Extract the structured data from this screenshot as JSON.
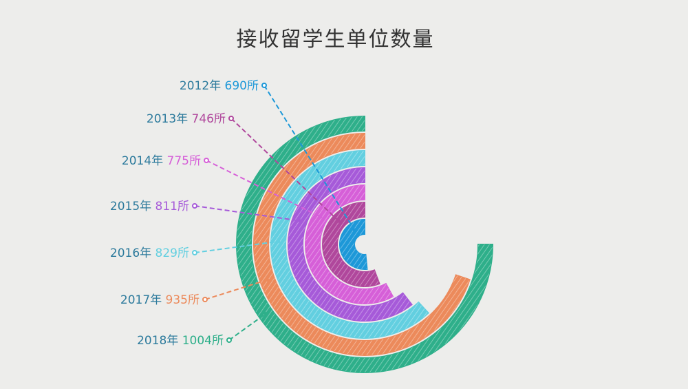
{
  "chart_data": {
    "type": "radial-bar",
    "title": "接收留学生单位数量",
    "unit": "所",
    "year_suffix": "年",
    "max_angle_value": 1004,
    "categories": [
      "2012",
      "2013",
      "2014",
      "2015",
      "2016",
      "2017",
      "2018"
    ],
    "values": [
      690,
      746,
      775,
      811,
      829,
      935,
      1004
    ],
    "value_labels": [
      "690所",
      "746所",
      "775所",
      "811所",
      "829所",
      "935所",
      "1004所"
    ],
    "year_labels": [
      "2012年",
      "2013年",
      "2014年",
      "2015年",
      "2016年",
      "2017年",
      "2018年"
    ],
    "colors": [
      "#1d98d8",
      "#b0479c",
      "#d65fd8",
      "#a65ad9",
      "#62cfe0",
      "#ec8a5b",
      "#2eaf8a"
    ],
    "label_year_color": "#2c7a9c"
  }
}
